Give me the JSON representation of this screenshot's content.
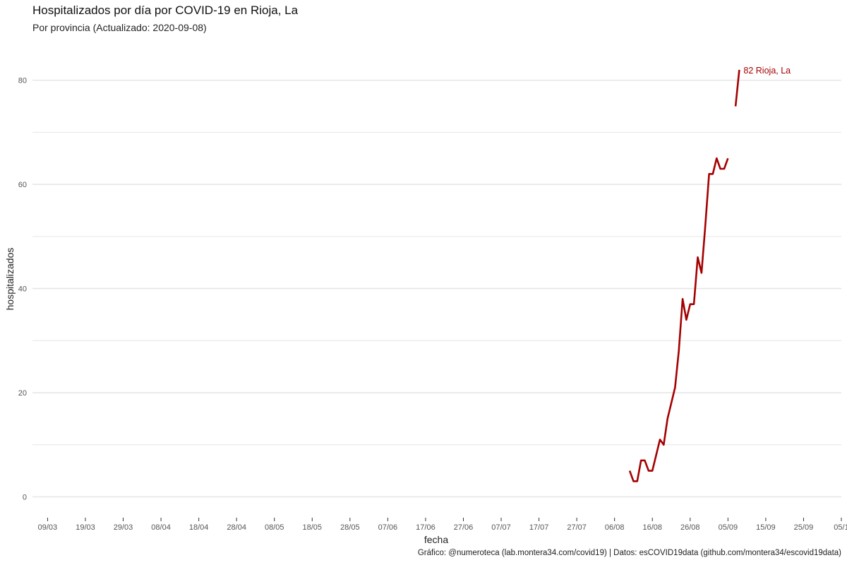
{
  "title": "Hospitalizados por día por COVID-19 en Rioja, La",
  "subtitle": "Por provincia  (Actualizado: 2020-09-08)",
  "caption": "Gráfico: @numeroteca (lab.montera34.com/covid19) | Datos: esCOVID19data (github.com/montera34/escovid19data)",
  "colors": {
    "series": "#a50000",
    "grid": "#e6e6e6"
  },
  "chart_data": {
    "type": "line",
    "xlabel": "fecha",
    "ylabel": "hospitalizados",
    "xlim": [
      "2020-03-05",
      "2020-10-05"
    ],
    "ylim": [
      -4,
      87
    ],
    "grid": true,
    "yticks": [
      0,
      20,
      40,
      60,
      80
    ],
    "xticks": [
      {
        "date": "2020-03-09",
        "label": "09/03"
      },
      {
        "date": "2020-03-19",
        "label": "19/03"
      },
      {
        "date": "2020-03-29",
        "label": "29/03"
      },
      {
        "date": "2020-04-08",
        "label": "08/04"
      },
      {
        "date": "2020-04-18",
        "label": "18/04"
      },
      {
        "date": "2020-04-28",
        "label": "28/04"
      },
      {
        "date": "2020-05-08",
        "label": "08/05"
      },
      {
        "date": "2020-05-18",
        "label": "18/05"
      },
      {
        "date": "2020-05-28",
        "label": "28/05"
      },
      {
        "date": "2020-06-07",
        "label": "07/06"
      },
      {
        "date": "2020-06-17",
        "label": "17/06"
      },
      {
        "date": "2020-06-27",
        "label": "27/06"
      },
      {
        "date": "2020-07-07",
        "label": "07/07"
      },
      {
        "date": "2020-07-17",
        "label": "17/07"
      },
      {
        "date": "2020-07-27",
        "label": "27/07"
      },
      {
        "date": "2020-08-06",
        "label": "06/08"
      },
      {
        "date": "2020-08-16",
        "label": "16/08"
      },
      {
        "date": "2020-08-26",
        "label": "26/08"
      },
      {
        "date": "2020-09-05",
        "label": "05/09"
      },
      {
        "date": "2020-09-15",
        "label": "15/09"
      },
      {
        "date": "2020-09-25",
        "label": "25/09"
      },
      {
        "date": "2020-10-05",
        "label": "05/1"
      }
    ],
    "series": [
      {
        "name": "Rioja, La",
        "segments": [
          [
            {
              "x": "2020-08-10",
              "y": 5
            },
            {
              "x": "2020-08-11",
              "y": 3
            },
            {
              "x": "2020-08-12",
              "y": 3
            },
            {
              "x": "2020-08-13",
              "y": 7
            },
            {
              "x": "2020-08-14",
              "y": 7
            },
            {
              "x": "2020-08-15",
              "y": 5
            },
            {
              "x": "2020-08-16",
              "y": 5
            },
            {
              "x": "2020-08-18",
              "y": 11
            },
            {
              "x": "2020-08-19",
              "y": 10
            },
            {
              "x": "2020-08-20",
              "y": 15
            },
            {
              "x": "2020-08-22",
              "y": 21
            },
            {
              "x": "2020-08-23",
              "y": 28
            },
            {
              "x": "2020-08-24",
              "y": 38
            },
            {
              "x": "2020-08-25",
              "y": 34
            },
            {
              "x": "2020-08-26",
              "y": 37
            },
            {
              "x": "2020-08-27",
              "y": 37
            },
            {
              "x": "2020-08-28",
              "y": 46
            },
            {
              "x": "2020-08-29",
              "y": 43
            },
            {
              "x": "2020-08-30",
              "y": 52
            },
            {
              "x": "2020-08-31",
              "y": 62
            },
            {
              "x": "2020-09-01",
              "y": 62
            },
            {
              "x": "2020-09-02",
              "y": 65
            },
            {
              "x": "2020-09-03",
              "y": 63
            },
            {
              "x": "2020-09-04",
              "y": 63
            },
            {
              "x": "2020-09-05",
              "y": 65
            }
          ],
          [
            {
              "x": "2020-09-07",
              "y": 75
            },
            {
              "x": "2020-09-08",
              "y": 82
            }
          ]
        ],
        "end_label": "82 Rioja, La"
      }
    ]
  }
}
